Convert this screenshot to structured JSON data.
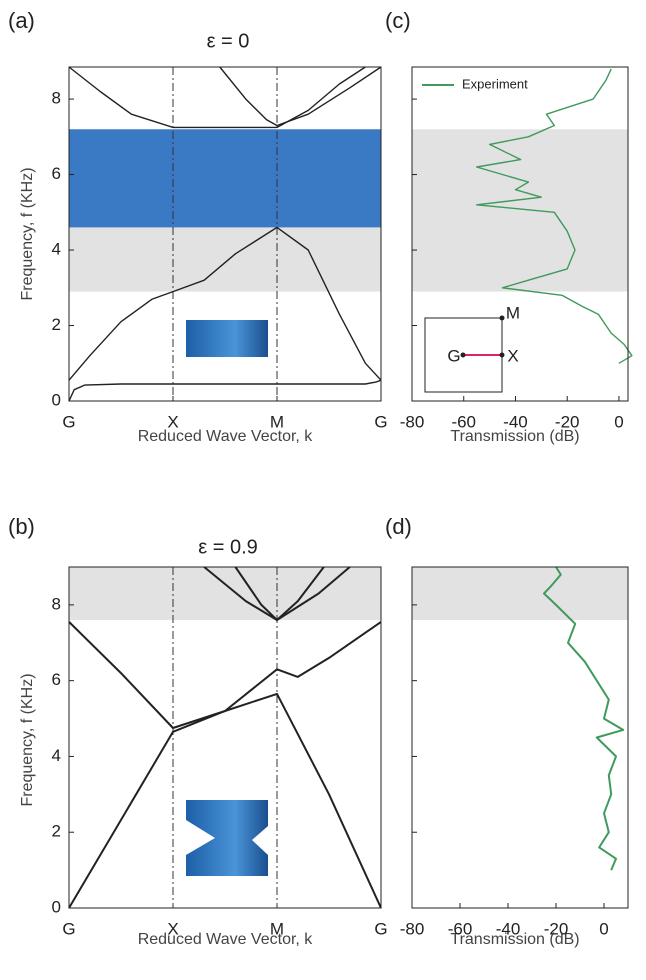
{
  "chart_data": [
    {
      "type": "line",
      "panel": "(a)",
      "title": "ε = 0",
      "y_label": "Frequency, f (KHz)",
      "x_label": "Reduced Wave Vector, k",
      "xlim": [
        0,
        3
      ],
      "ylim": [
        0,
        8.85
      ],
      "xticks": [
        {
          "value": 0,
          "label": "G"
        },
        {
          "value": 1,
          "label": "X"
        },
        {
          "value": 2,
          "label": "M"
        },
        {
          "value": 3,
          "label": "G"
        }
      ],
      "yticks": [
        0,
        2,
        4,
        6,
        8
      ],
      "ytick_labels": true,
      "vlines": true,
      "shaded_bands": [
        {
          "from": 2.9,
          "to": 4.6,
          "color": "#e2e2e2"
        },
        {
          "from": 4.6,
          "to": 7.2,
          "color": "#3a79c3"
        }
      ],
      "series": [
        {
          "color": "#222",
          "x": [
            0,
            0.05,
            0.15,
            0.5,
            1,
            1.5,
            2,
            2.5,
            2.85,
            2.95,
            3
          ],
          "values": [
            0,
            0.3,
            0.42,
            0.45,
            0.45,
            0.45,
            0.45,
            0.45,
            0.45,
            0.5,
            0.55
          ]
        },
        {
          "color": "#222",
          "x": [
            0,
            0.2,
            0.5,
            0.8,
            1,
            1.3,
            1.6,
            2,
            2.3,
            2.6,
            2.85,
            3
          ],
          "values": [
            0.55,
            1.2,
            2.1,
            2.7,
            2.9,
            3.2,
            3.9,
            4.6,
            4.0,
            2.3,
            1.0,
            0.55
          ]
        },
        {
          "color": "#222",
          "x": [
            0,
            0.3,
            0.6,
            1,
            1.5,
            2,
            2.3,
            2.6,
            2.85
          ],
          "values": [
            8.85,
            8.2,
            7.6,
            7.25,
            7.25,
            7.25,
            7.7,
            8.4,
            8.85
          ]
        },
        {
          "color": "#222",
          "x": [
            1.45,
            1.7,
            1.9,
            2,
            2.3,
            2.7,
            3
          ],
          "values": [
            8.85,
            8.0,
            7.45,
            7.3,
            7.6,
            8.3,
            8.85
          ]
        }
      ]
    },
    {
      "type": "line",
      "panel": "(c)",
      "x_label": "Transmission (dB)",
      "legend": "upper-left",
      "xlim": [
        -80,
        3.5
      ],
      "ylim": [
        0,
        8.85
      ],
      "xticks": [
        -80,
        -60,
        -40,
        -20,
        0
      ],
      "yticks": [
        0,
        2,
        4,
        6,
        8
      ],
      "ytick_labels": false,
      "vlines": false,
      "shaded_bands": [
        {
          "from": 2.9,
          "to": 7.2,
          "color": "#e2e2e2"
        }
      ],
      "inset_labels": [
        "G",
        "X",
        "M"
      ],
      "series": [
        {
          "name": "Experiment",
          "color": "#3f9a5c",
          "x": [
            0,
            5,
            2,
            -3,
            -5,
            -8,
            -14,
            -22,
            -45,
            -35,
            -20,
            -17,
            -20,
            -25,
            -55,
            -30,
            -40,
            -35,
            -55,
            -38,
            -50,
            -35,
            -25,
            -28,
            -10,
            -5,
            -3
          ],
          "values": [
            1.0,
            1.2,
            1.5,
            1.8,
            2.0,
            2.3,
            2.5,
            2.8,
            3.0,
            3.2,
            3.5,
            4.0,
            4.5,
            5.0,
            5.2,
            5.4,
            5.6,
            5.8,
            6.2,
            6.4,
            6.8,
            7.0,
            7.3,
            7.6,
            8.0,
            8.5,
            8.8
          ]
        }
      ]
    },
    {
      "type": "line",
      "panel": "(b)",
      "title": "ε = 0.9",
      "y_label": "Frequency, f (KHz)",
      "x_label": "Reduced Wave Vector, k",
      "xlim": [
        0,
        3
      ],
      "ylim": [
        0,
        9
      ],
      "xticks": [
        {
          "value": 0,
          "label": "G"
        },
        {
          "value": 1,
          "label": "X"
        },
        {
          "value": 2,
          "label": "M"
        },
        {
          "value": 3,
          "label": "G"
        }
      ],
      "yticks": [
        0,
        2,
        4,
        6,
        8
      ],
      "ytick_labels": true,
      "vlines": true,
      "shaded_bands": [
        {
          "from": 7.6,
          "to": 9,
          "color": "#e2e2e2"
        }
      ],
      "series": [
        {
          "color": "#222",
          "x": [
            0,
            1,
            1.5,
            2,
            2.5,
            3
          ],
          "values": [
            0,
            4.65,
            5.2,
            5.65,
            3.0,
            0
          ]
        },
        {
          "color": "#222",
          "x": [
            0,
            0.5,
            1,
            1.5,
            2,
            2.2,
            2.5,
            3
          ],
          "values": [
            7.55,
            6.2,
            4.75,
            5.2,
            6.3,
            6.1,
            6.6,
            7.55
          ]
        },
        {
          "color": "#222",
          "x": [
            1.3,
            1.7,
            2,
            2.4,
            2.7
          ],
          "values": [
            9,
            8.1,
            7.6,
            8.3,
            9
          ]
        },
        {
          "color": "#222",
          "x": [
            1.6,
            1.85,
            2,
            2.2,
            2.45
          ],
          "values": [
            9,
            8.0,
            7.6,
            8.1,
            9
          ]
        }
      ]
    },
    {
      "type": "line",
      "panel": "(d)",
      "x_label": "Transmission (dB)",
      "xlim": [
        -80,
        10
      ],
      "ylim": [
        0,
        9
      ],
      "xticks": [
        -80,
        -60,
        -40,
        -20,
        0
      ],
      "yticks": [
        0,
        2,
        4,
        6,
        8
      ],
      "ytick_labels": false,
      "vlines": false,
      "shaded_bands": [
        {
          "from": 7.6,
          "to": 9,
          "color": "#e2e2e2"
        }
      ],
      "series": [
        {
          "color": "#3f9a5c",
          "x": [
            3,
            5,
            -2,
            2,
            0,
            3,
            2,
            5,
            -3,
            8,
            0,
            2,
            -3,
            -8,
            -15,
            -12,
            -20,
            -25,
            -22,
            -18,
            -20
          ],
          "values": [
            1.0,
            1.3,
            1.6,
            2.0,
            2.5,
            3.0,
            3.5,
            4.0,
            4.5,
            4.7,
            5.0,
            5.5,
            6.0,
            6.5,
            7.0,
            7.5,
            8.0,
            8.3,
            8.5,
            8.8,
            9.0
          ]
        }
      ]
    }
  ]
}
